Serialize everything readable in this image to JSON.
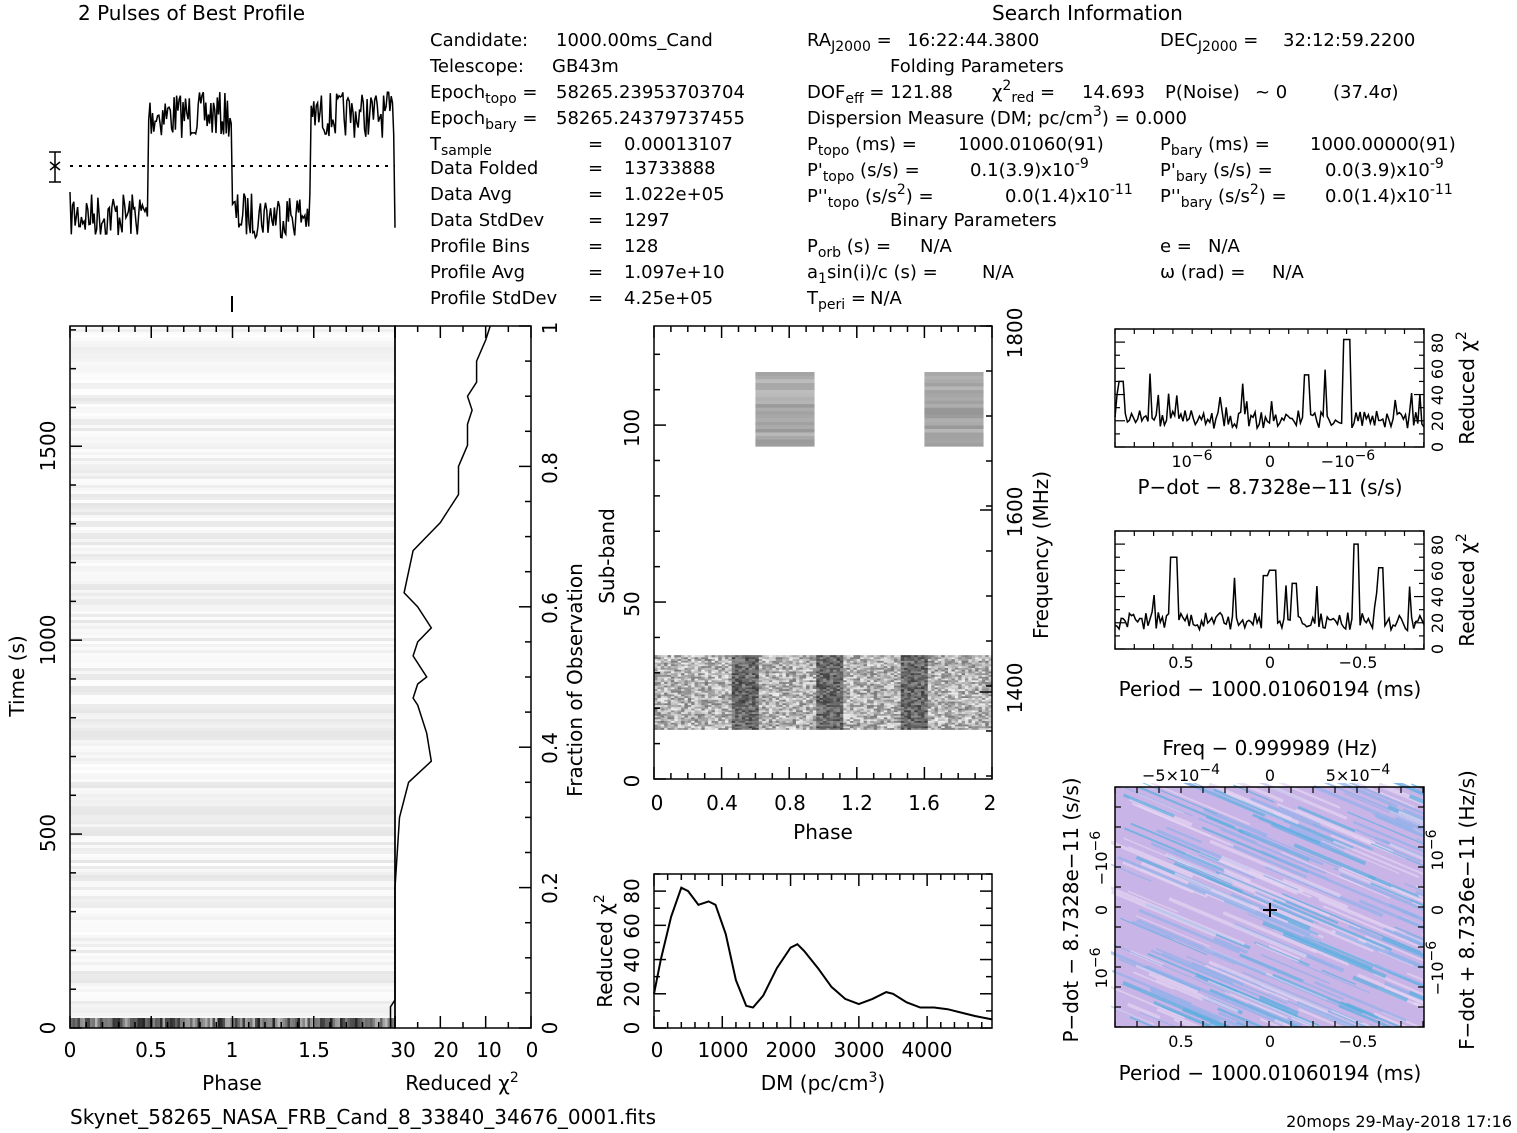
{
  "header": {
    "profile_title": "2 Pulses of Best Profile",
    "search_title": "Search Information"
  },
  "info": {
    "candidate": "1000.00ms_Cand",
    "telescope": "GB43m",
    "epoch_topo": "58265.23953703704",
    "epoch_bary": "58265.24379737455",
    "t_sample": "0.00013107",
    "data_folded": "13733888",
    "data_avg": "1.022e+05",
    "data_stddev": "1297",
    "profile_bins": "128",
    "profile_avg": "1.097e+10",
    "profile_stddev": "4.25e+05",
    "ra": "16:22:44.3800",
    "dec": "32:12:59.2200",
    "folding_title": "Folding Parameters",
    "dof_eff": "121.88",
    "chi2_red": "14.693",
    "p_noise": "~ 0",
    "sigma": "(37.4σ)",
    "dm_line": "Dispersion Measure (DM; pc/cm",
    "dm_value": ") = 0.000",
    "p_topo": "1000.01060(91)",
    "p_bary": "1000.00000(91)",
    "pd_topo": "0.1(3.9)x10",
    "pd_bary": "0.0(3.9)x10",
    "pdd_topo": "0.0(1.4)x10",
    "pdd_bary": "0.0(1.4)x10",
    "exp9": "-9",
    "exp11": "-11",
    "binary_title": "Binary Parameters",
    "p_orb": "N/A",
    "e": "N/A",
    "a1sini": "N/A",
    "omega": "N/A",
    "t_peri": "N/A"
  },
  "footer": {
    "filename": "Skynet_58265_NASA_FRB_Cand_8_33840_34676_0001.fits",
    "stamp": "20mops 29-May-2018 17:16"
  },
  "chart_data": [
    {
      "type": "line",
      "panel": "pulse-profile",
      "title": "2 Pulses of Best Profile",
      "x": "phase 0-2 (2 pulses of the folded profile)",
      "xlim": [
        0,
        2
      ],
      "on_pulse_phase": [
        0.48,
        1.0
      ],
      "levels": {
        "low": 0.25,
        "high": 0.8,
        "mean_dotted": 0.55
      }
    },
    {
      "type": "heatmap",
      "panel": "time-vs-phase",
      "xlabel": "Phase",
      "ylabel": "Time (s)",
      "xlim": [
        0,
        2
      ],
      "ylim": [
        0,
        1810
      ],
      "x_ticks": [
        "0",
        "0.5",
        "1",
        "1.5"
      ],
      "y_ticks": [
        "0",
        "500",
        "1000",
        "1500"
      ]
    },
    {
      "type": "line",
      "panel": "chi2-vs-fraction",
      "xlabel": "Reduced χ²",
      "ylabel": "Fraction of Observation",
      "xlim": [
        30,
        0
      ],
      "ylim": [
        0,
        1
      ],
      "x_ticks": [
        "30",
        "20",
        "10",
        "0"
      ],
      "y_ticks": [
        "0",
        "0.2",
        "0.4",
        "0.6",
        "0.8",
        "1"
      ],
      "points": [
        [
          0,
          31
        ],
        [
          0.03,
          31
        ],
        [
          0.04,
          30
        ],
        [
          0.2,
          30
        ],
        [
          0.3,
          29
        ],
        [
          0.35,
          27
        ],
        [
          0.38,
          22
        ],
        [
          0.42,
          23
        ],
        [
          0.46,
          25
        ],
        [
          0.47,
          26
        ],
        [
          0.49,
          25
        ],
        [
          0.5,
          23
        ],
        [
          0.53,
          26
        ],
        [
          0.55,
          25
        ],
        [
          0.57,
          22
        ],
        [
          0.6,
          25
        ],
        [
          0.62,
          28
        ],
        [
          0.65,
          27
        ],
        [
          0.68,
          26
        ],
        [
          0.7,
          23
        ],
        [
          0.72,
          20
        ],
        [
          0.74,
          18
        ],
        [
          0.76,
          16
        ],
        [
          0.8,
          16
        ],
        [
          0.83,
          14
        ],
        [
          0.86,
          14
        ],
        [
          0.88,
          13
        ],
        [
          0.9,
          14
        ],
        [
          0.92,
          12
        ],
        [
          0.95,
          12
        ],
        [
          0.98,
          10
        ],
        [
          1.0,
          9
        ]
      ]
    },
    {
      "type": "heatmap",
      "panel": "subband-vs-phase",
      "xlabel": "Phase",
      "ylabel": "Sub-band",
      "y2label": "Frequency (MHz)",
      "xlim": [
        0,
        2
      ],
      "ylim": [
        0,
        128
      ],
      "x_ticks": [
        "0",
        "0.4",
        "0.8",
        "1.2",
        "1.6",
        "2"
      ],
      "y_ticks": [
        "0",
        "50",
        "100"
      ],
      "y2_ticks": [
        "1400",
        "1600",
        "1800"
      ],
      "bands": [
        {
          "subbands": [
            94,
            115
          ],
          "pulses": [
            [
              0.6,
              0.95
            ],
            [
              1.6,
              1.95
            ]
          ]
        },
        {
          "subbands": [
            14,
            35
          ],
          "pulses": [
            [
              0.45,
              0.62
            ],
            [
              0.95,
              1.12
            ],
            [
              1.45,
              1.62
            ]
          ]
        }
      ]
    },
    {
      "type": "line",
      "panel": "chi2-vs-dm",
      "xlabel": "DM (pc/cm³)",
      "ylabel": "Reduced χ²",
      "xlim": [
        0,
        4950
      ],
      "ylim": [
        0,
        90
      ],
      "x_ticks": [
        "0",
        "1000",
        "2000",
        "3000",
        "4000"
      ],
      "y_ticks": [
        "0",
        "20",
        "40",
        "60",
        "80"
      ],
      "points": [
        [
          0,
          20
        ],
        [
          100,
          40
        ],
        [
          250,
          65
        ],
        [
          400,
          82
        ],
        [
          500,
          80
        ],
        [
          650,
          72
        ],
        [
          800,
          74
        ],
        [
          900,
          72
        ],
        [
          1050,
          55
        ],
        [
          1200,
          28
        ],
        [
          1350,
          13
        ],
        [
          1450,
          12
        ],
        [
          1600,
          19
        ],
        [
          1800,
          35
        ],
        [
          2000,
          47
        ],
        [
          2100,
          49
        ],
        [
          2200,
          45
        ],
        [
          2400,
          35
        ],
        [
          2600,
          24
        ],
        [
          2800,
          17
        ],
        [
          3000,
          14
        ],
        [
          3200,
          17
        ],
        [
          3400,
          21
        ],
        [
          3500,
          20
        ],
        [
          3700,
          15
        ],
        [
          3900,
          12
        ],
        [
          4100,
          12
        ],
        [
          4300,
          11
        ],
        [
          4500,
          9
        ],
        [
          4700,
          7
        ],
        [
          4950,
          5
        ]
      ]
    },
    {
      "type": "line",
      "panel": "chi2-vs-pdot",
      "xlabel": "P-dot − 8.7328e-11 (s/s)",
      "ylabel": "Reduced χ²",
      "ylim": [
        0,
        90
      ],
      "x_ticks": [
        "10⁻⁶",
        "0",
        "−10⁻⁶"
      ],
      "y_ticks": [
        "0",
        "20",
        "40",
        "60",
        "80"
      ],
      "peak": 82
    },
    {
      "type": "line",
      "panel": "chi2-vs-period",
      "xlabel": "Period − 1000.01060194 (ms)",
      "ylabel": "Reduced χ²",
      "ylim": [
        0,
        90
      ],
      "x_ticks": [
        "0.5",
        "0",
        "−0.5"
      ],
      "y_ticks": [
        "0",
        "20",
        "40",
        "60",
        "80"
      ],
      "peak": 80
    },
    {
      "type": "heatmap",
      "panel": "pdot-vs-period",
      "xlabel": "Period − 1000.01060194 (ms)",
      "ylabel": "P-dot − 8.7328e-11 (s/s)",
      "x2label": "Freq − 0.999989 (Hz)",
      "y2label": "F-dot + 8.7326e-11 (Hz/s)",
      "x_ticks": [
        "0.5",
        "0",
        "−0.5"
      ],
      "x2_ticks": [
        "−5×10⁻⁴",
        "0",
        "5×10⁻⁴"
      ],
      "y_ticks": [
        "10⁻⁶",
        "0",
        "−10⁻⁶"
      ],
      "y2_ticks": [
        "10⁻⁶",
        "0",
        "−10⁻⁶"
      ],
      "colors": {
        "bg": "#c8b4e6",
        "streak": "#8fb0ea",
        "accent": "#5aaee0"
      }
    }
  ]
}
